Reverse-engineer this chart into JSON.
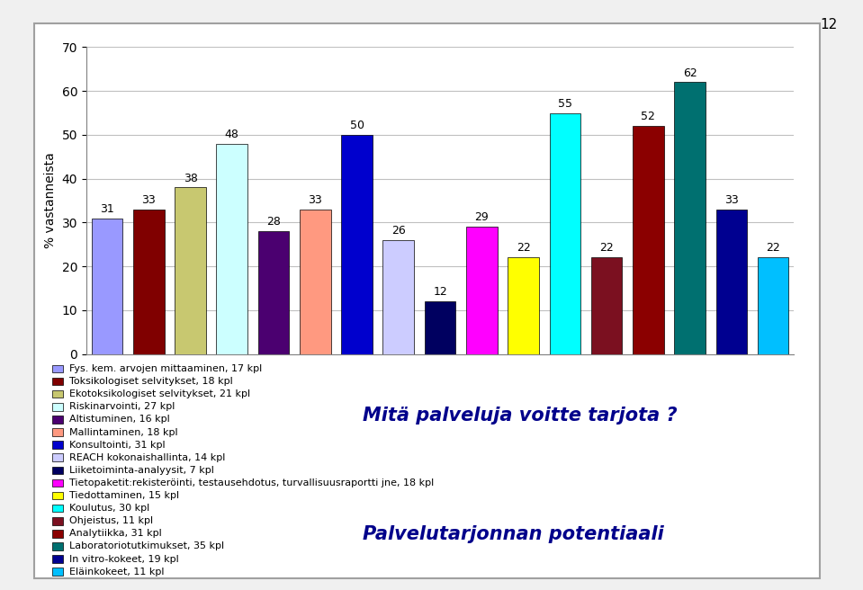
{
  "values": [
    31,
    33,
    38,
    48,
    28,
    33,
    50,
    26,
    12,
    29,
    22,
    55,
    22,
    52,
    62,
    33,
    22
  ],
  "bar_colors": [
    "#9999FF",
    "#800000",
    "#C8C870",
    "#CCFFFF",
    "#4B0070",
    "#FF9980",
    "#0000CD",
    "#CCCCFF",
    "#000060",
    "#FF00FF",
    "#FFFF00",
    "#00FFFF",
    "#7B1020",
    "#8B0000",
    "#007070",
    "#000090",
    "#00BFFF"
  ],
  "legend_labels": [
    "Fys. kem. arvojen mittaaminen, 17 kpl",
    "Toksikologiset selvitykset, 18 kpl",
    "Ekotoksikologiset selvitykset, 21 kpl",
    "Riskinarvointi, 27 kpl",
    "Altistuminen, 16 kpl",
    "Mallintaminen, 18 kpl",
    "Konsultointi, 31 kpl",
    "REACH kokonaishallinta, 14 kpl",
    "Liiketoiminta-analyysit, 7 kpl",
    "Tietopaketit:rekisteröinti, testausehdotus, turvallisuusraportti jne, 18 kpl",
    "Tiedottaminen, 15 kpl",
    "Koulutus, 30 kpl",
    "Ohjeistus, 11 kpl",
    "Analytiikka, 31 kpl",
    "Laboratoriotutkimukset, 35 kpl",
    "In vitro-kokeet, 19 kpl",
    "Eläinkokeet, 11 kpl"
  ],
  "legend_colors": [
    "#9999FF",
    "#800000",
    "#C8C870",
    "#CCFFFF",
    "#4B0070",
    "#FF9980",
    "#0000CD",
    "#CCCCFF",
    "#000060",
    "#FF00FF",
    "#FFFF00",
    "#00FFFF",
    "#7B1020",
    "#8B0000",
    "#007070",
    "#000090",
    "#00BFFF"
  ],
  "ylabel": "% vastanneista",
  "ylim": [
    0,
    70
  ],
  "yticks": [
    0,
    10,
    20,
    30,
    40,
    50,
    60,
    70
  ],
  "title_text1": "Mitä palveluja voitte tarjota ?",
  "title_text2": "Palvelutarjonnan potentiaali",
  "background_color": "#F0F0F0",
  "plot_bg_color": "#FFFFFF",
  "frame_bg_color": "#FFFFFF",
  "grid_color": "#C0C0C0",
  "annotation_fontsize": 9,
  "bar_edge_color": "#000000",
  "page_number": "12"
}
